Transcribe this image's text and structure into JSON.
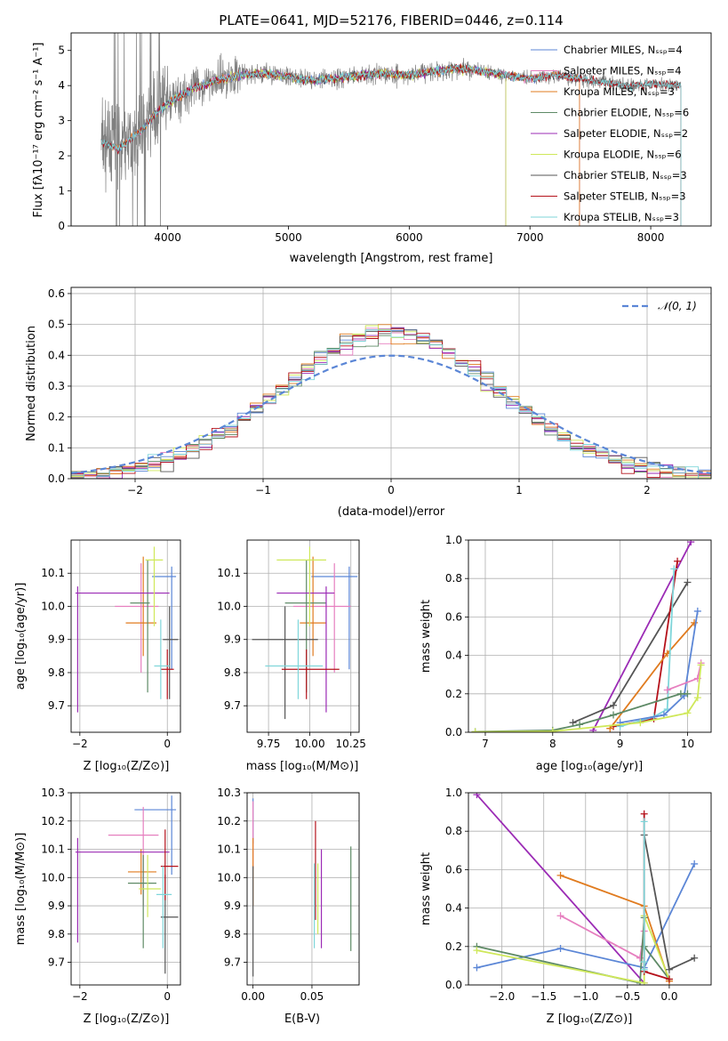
{
  "figure": {
    "title": "PLATE=0641, MJD=52176, FIBERID=0446, z=0.114"
  },
  "colors": {
    "chabrier_miles": "#5b86d6",
    "salpeter_miles": "#e67fbf",
    "kroupa_miles": "#e07b1f",
    "chabrier_elodie": "#5e8a66",
    "salpeter_elodie": "#9b2bb5",
    "kroupa_elodie": "#cfe85a",
    "chabrier_stelib": "#555555",
    "salpeter_stelib": "#b5121b",
    "kroupa_stelib": "#7fd6da",
    "data": "#808080",
    "normal": "#5b86d6"
  },
  "chart_data": [
    {
      "id": "spectrum",
      "type": "line",
      "xlabel": "wavelength [Angstrom, rest frame]",
      "ylabel": "Flux [fλ10⁻¹⁷ erg cm⁻² s⁻¹ A⁻¹]",
      "xlim": [
        3200,
        8500
      ],
      "ylim": [
        0,
        5.5
      ],
      "xticks": [
        "4000",
        "5000",
        "6000",
        "7000",
        "8000"
      ],
      "yticks": [
        "0",
        "1",
        "2",
        "3",
        "4",
        "5"
      ],
      "legend_position": "right",
      "continuum": [
        [
          3450,
          2.4
        ],
        [
          3600,
          2.2
        ],
        [
          3700,
          2.5
        ],
        [
          3800,
          2.8
        ],
        [
          3900,
          3.2
        ],
        [
          4000,
          3.5
        ],
        [
          4100,
          3.7
        ],
        [
          4200,
          3.9
        ],
        [
          4400,
          4.15
        ],
        [
          4600,
          4.3
        ],
        [
          4800,
          4.35
        ],
        [
          5000,
          4.25
        ],
        [
          5200,
          4.15
        ],
        [
          5400,
          4.2
        ],
        [
          5600,
          4.3
        ],
        [
          5800,
          4.35
        ],
        [
          6000,
          4.3
        ],
        [
          6200,
          4.4
        ],
        [
          6400,
          4.5
        ],
        [
          6600,
          4.4
        ],
        [
          6800,
          4.3
        ],
        [
          7000,
          4.2
        ],
        [
          7200,
          4.3
        ],
        [
          7400,
          4.2
        ],
        [
          7600,
          4.1
        ],
        [
          7800,
          4.0
        ],
        [
          8000,
          4.05
        ],
        [
          8250,
          4.0
        ]
      ],
      "series": [
        {
          "name": "Chabrier MILES, Nₛₛₚ=4",
          "color_key": "chabrier_miles"
        },
        {
          "name": "Salpeter MILES, Nₛₛₚ=4",
          "color_key": "salpeter_miles"
        },
        {
          "name": "Kroupa MILES, Nₛₛₚ=3",
          "color_key": "kroupa_miles"
        },
        {
          "name": "Chabrier ELODIE, Nₛₛₚ=6",
          "color_key": "chabrier_elodie"
        },
        {
          "name": "Salpeter ELODIE, Nₛₛₚ=2",
          "color_key": "salpeter_elodie"
        },
        {
          "name": "Kroupa ELODIE, Nₛₛₚ=6",
          "color_key": "kroupa_elodie"
        },
        {
          "name": "Chabrier STELIB, Nₛₛₚ=3",
          "color_key": "chabrier_stelib"
        },
        {
          "name": "Salpeter STELIB, Nₛₛₚ=3",
          "color_key": "salpeter_stelib"
        },
        {
          "name": "Kroupa STELIB, Nₛₛₚ=3",
          "color_key": "kroupa_stelib"
        }
      ]
    },
    {
      "id": "residuals",
      "type": "line",
      "xlabel": "(data-model)/error",
      "ylabel": "Normed distribution",
      "xlim": [
        -2.5,
        2.5
      ],
      "ylim": [
        0,
        0.62
      ],
      "xticks": [
        "−2",
        "−1",
        "0",
        "1",
        "2"
      ],
      "yticks": [
        "0.0",
        "0.1",
        "0.2",
        "0.3",
        "0.4",
        "0.5",
        "0.6"
      ],
      "legend_label": "𝒩(0, 1)",
      "legend_position": "top-right",
      "grid": true
    },
    {
      "id": "age-vs-Z",
      "type": "scatter",
      "xlabel": "Z [log₁₀(Z/Z⊙)]",
      "ylabel": "age  [log₁₀(age/yr)]",
      "xlim": [
        -2.2,
        0.3
      ],
      "ylim": [
        9.62,
        10.2
      ],
      "xticks": [
        "−2",
        "0"
      ],
      "yticks": [
        "9.7",
        "9.8",
        "9.9",
        "10.0",
        "10.1"
      ],
      "grid": true,
      "points": [
        {
          "key": "chabrier_miles",
          "x": 0.1,
          "y": 10.09,
          "xerr": [
            0.45,
            0.1
          ],
          "yerr": [
            0.28,
            0.03
          ]
        },
        {
          "key": "salpeter_miles",
          "x": -0.6,
          "y": 10.0,
          "xerr": [
            0.6,
            0.4
          ],
          "yerr": [
            0.2,
            0.13
          ]
        },
        {
          "key": "kroupa_miles",
          "x": -0.55,
          "y": 9.95,
          "xerr": [
            0.4,
            0.3
          ],
          "yerr": [
            0.1,
            0.2
          ]
        },
        {
          "key": "chabrier_elodie",
          "x": -0.45,
          "y": 10.01,
          "xerr": [
            0.4,
            0.05
          ],
          "yerr": [
            0.27,
            0.13
          ]
        },
        {
          "key": "salpeter_elodie",
          "x": -2.05,
          "y": 10.04,
          "xerr": [
            0.05,
            2.1
          ],
          "yerr": [
            0.36,
            0.02
          ]
        },
        {
          "key": "kroupa_elodie",
          "x": -0.3,
          "y": 10.14,
          "xerr": [
            0.2,
            0.2
          ],
          "yerr": [
            0.2,
            0.04
          ]
        },
        {
          "key": "chabrier_stelib",
          "x": 0.05,
          "y": 9.9,
          "xerr": [
            0.15,
            0.2
          ],
          "yerr": [
            0.18,
            0.1
          ]
        },
        {
          "key": "salpeter_stelib",
          "x": 0.0,
          "y": 9.81,
          "xerr": [
            0.15,
            0.15
          ],
          "yerr": [
            0.09,
            0.06
          ]
        },
        {
          "key": "kroupa_stelib",
          "x": -0.15,
          "y": 9.82,
          "xerr": [
            0.15,
            0.2
          ],
          "yerr": [
            0.1,
            0.14
          ]
        }
      ]
    },
    {
      "id": "age-vs-mass",
      "type": "scatter",
      "xlabel": "mass [log₁₀(M/M⊙)]",
      "xlim": [
        9.62,
        10.3
      ],
      "ylim": [
        9.62,
        10.2
      ],
      "xticks": [
        "9.75",
        "10.00",
        "10.25"
      ],
      "yticks": [
        "9.7",
        "9.8",
        "9.9",
        "10.0",
        "10.1"
      ],
      "grid": true,
      "points": [
        {
          "key": "chabrier_miles",
          "x": 10.24,
          "y": 10.09,
          "xerr": [
            0.23,
            0.05
          ],
          "yerr": [
            0.28,
            0.03
          ]
        },
        {
          "key": "salpeter_miles",
          "x": 10.15,
          "y": 10.0,
          "xerr": [
            0.25,
            0.1
          ],
          "yerr": [
            0.2,
            0.13
          ]
        },
        {
          "key": "kroupa_miles",
          "x": 10.02,
          "y": 9.95,
          "xerr": [
            0.08,
            0.08
          ],
          "yerr": [
            0.1,
            0.2
          ]
        },
        {
          "key": "chabrier_elodie",
          "x": 9.98,
          "y": 10.01,
          "xerr": [
            0.13,
            0.12
          ],
          "yerr": [
            0.27,
            0.13
          ]
        },
        {
          "key": "salpeter_elodie",
          "x": 10.1,
          "y": 10.04,
          "xerr": [
            0.3,
            0.05
          ],
          "yerr": [
            0.36,
            0.02
          ]
        },
        {
          "key": "kroupa_elodie",
          "x": 10.0,
          "y": 10.14,
          "xerr": [
            0.2,
            0.1
          ],
          "yerr": [
            0.2,
            0.04
          ]
        },
        {
          "key": "chabrier_stelib",
          "x": 9.85,
          "y": 9.9,
          "xerr": [
            0.2,
            0.2
          ],
          "yerr": [
            0.24,
            0.1
          ]
        },
        {
          "key": "salpeter_stelib",
          "x": 9.98,
          "y": 9.81,
          "xerr": [
            0.15,
            0.2
          ],
          "yerr": [
            0.09,
            0.06
          ]
        },
        {
          "key": "kroupa_stelib",
          "x": 9.93,
          "y": 9.82,
          "xerr": [
            0.2,
            0.15
          ],
          "yerr": [
            0.1,
            0.14
          ]
        }
      ]
    },
    {
      "id": "weight-vs-age",
      "type": "line",
      "xlabel": "age  [log₁₀(age/yr)]",
      "ylabel": "mass weight",
      "xlim": [
        6.75,
        10.35
      ],
      "ylim": [
        0,
        1.0
      ],
      "xticks": [
        "7",
        "8",
        "9",
        "10"
      ],
      "yticks": [
        "0.0",
        "0.2",
        "0.4",
        "0.6",
        "0.8",
        "1.0"
      ],
      "grid": true,
      "series": [
        {
          "key": "salpeter_elodie",
          "x": [
            8.6,
            10.05
          ],
          "y": [
            0.01,
            0.99
          ]
        },
        {
          "key": "chabrier_stelib",
          "x": [
            8.3,
            8.9,
            10.0
          ],
          "y": [
            0.05,
            0.14,
            0.78
          ]
        },
        {
          "key": "salpeter_stelib",
          "x": [
            8.9,
            9.5,
            9.85
          ],
          "y": [
            0.03,
            0.07,
            0.89
          ]
        },
        {
          "key": "kroupa_miles",
          "x": [
            8.85,
            9.7,
            10.1
          ],
          "y": [
            0.02,
            0.41,
            0.57
          ]
        },
        {
          "key": "kroupa_stelib",
          "x": [
            9.0,
            9.5,
            9.7,
            9.8
          ],
          "y": [
            0.03,
            0.08,
            0.12,
            0.85
          ]
        },
        {
          "key": "chabrier_miles",
          "x": [
            9.0,
            9.65,
            9.95,
            10.15
          ],
          "y": [
            0.05,
            0.09,
            0.19,
            0.63
          ]
        },
        {
          "key": "salpeter_miles",
          "x": [
            9.7,
            10.15,
            10.2
          ],
          "y": [
            0.22,
            0.28,
            0.36
          ]
        },
        {
          "key": "chabrier_elodie",
          "x": [
            6.85,
            8.0,
            8.4,
            8.9,
            9.9,
            10.0
          ],
          "y": [
            0.003,
            0.01,
            0.04,
            0.09,
            0.2,
            0.2
          ]
        },
        {
          "key": "kroupa_elodie",
          "x": [
            6.85,
            8.0,
            9.3,
            10.0,
            10.15,
            10.2
          ],
          "y": [
            0.002,
            0.005,
            0.05,
            0.1,
            0.18,
            0.35
          ]
        }
      ]
    },
    {
      "id": "mass-vs-Z",
      "type": "scatter",
      "xlabel": "Z [log₁₀(Z/Z⊙)]",
      "ylabel": "mass [log₁₀(M/M⊙)]",
      "xlim": [
        -2.2,
        0.3
      ],
      "ylim": [
        9.62,
        10.3
      ],
      "xticks": [
        "−2",
        "0"
      ],
      "yticks": [
        "9.7",
        "9.8",
        "9.9",
        "10.0",
        "10.1",
        "10.2",
        "10.3"
      ],
      "grid": true,
      "points": [
        {
          "key": "chabrier_miles",
          "x": 0.1,
          "y": 10.24,
          "xerr": [
            0.85,
            0.1
          ],
          "yerr": [
            0.23,
            0.05
          ]
        },
        {
          "key": "salpeter_miles",
          "x": -0.55,
          "y": 10.15,
          "xerr": [
            0.8,
            0.35
          ],
          "yerr": [
            0.25,
            0.1
          ]
        },
        {
          "key": "kroupa_miles",
          "x": -0.6,
          "y": 10.02,
          "xerr": [
            0.3,
            0.35
          ],
          "yerr": [
            0.08,
            0.08
          ]
        },
        {
          "key": "chabrier_elodie",
          "x": -0.55,
          "y": 9.98,
          "xerr": [
            0.35,
            0.3
          ],
          "yerr": [
            0.23,
            0.1
          ]
        },
        {
          "key": "salpeter_elodie",
          "x": -2.05,
          "y": 10.09,
          "xerr": [
            0.05,
            2.1
          ],
          "yerr": [
            0.32,
            0.05
          ]
        },
        {
          "key": "kroupa_elodie",
          "x": -0.45,
          "y": 9.96,
          "xerr": [
            0.2,
            0.3
          ],
          "yerr": [
            0.1,
            0.12
          ]
        },
        {
          "key": "chabrier_stelib",
          "x": -0.05,
          "y": 9.86,
          "xerr": [
            0.1,
            0.3
          ],
          "yerr": [
            0.2,
            0.15
          ]
        },
        {
          "key": "salpeter_stelib",
          "x": -0.05,
          "y": 10.04,
          "xerr": [
            0.1,
            0.3
          ],
          "yerr": [
            0.12,
            0.13
          ]
        },
        {
          "key": "kroupa_stelib",
          "x": -0.1,
          "y": 9.94,
          "xerr": [
            0.15,
            0.2
          ],
          "yerr": [
            0.19,
            0.1
          ]
        }
      ]
    },
    {
      "id": "mass-vs-EBV",
      "type": "scatter",
      "xlabel": "E(B-V)",
      "xlim": [
        -0.005,
        0.09
      ],
      "ylim": [
        9.62,
        10.3
      ],
      "xticks": [
        "0.00",
        "0.05"
      ],
      "yticks": [
        "9.7",
        "9.8",
        "9.9",
        "10.0",
        "10.1",
        "10.2",
        "10.3"
      ],
      "grid": true,
      "points": [
        {
          "key": "chabrier_miles",
          "x": 0.0,
          "y": 10.24,
          "yerr": [
            0.12,
            0.04
          ]
        },
        {
          "key": "salpeter_miles",
          "x": 0.0,
          "y": 10.15,
          "yerr": [
            0.12,
            0.12
          ]
        },
        {
          "key": "kroupa_miles",
          "x": 0.0,
          "y": 10.0,
          "yerr": [
            0.1,
            0.14
          ]
        },
        {
          "key": "chabrier_stelib",
          "x": 0.0,
          "y": 9.9,
          "yerr": [
            0.25,
            0.14
          ]
        },
        {
          "key": "salpeter_stelib",
          "x": 0.053,
          "y": 10.05,
          "yerr": [
            0.2,
            0.15
          ]
        },
        {
          "key": "kroupa_stelib",
          "x": 0.052,
          "y": 9.85,
          "yerr": [
            0.1,
            0.2
          ]
        },
        {
          "key": "kroupa_elodie",
          "x": 0.055,
          "y": 9.95,
          "yerr": [
            0.15,
            0.1
          ]
        },
        {
          "key": "salpeter_elodie",
          "x": 0.058,
          "y": 9.9,
          "yerr": [
            0.15,
            0.2
          ]
        },
        {
          "key": "chabrier_elodie",
          "x": 0.083,
          "y": 9.93,
          "yerr": [
            0.19,
            0.18
          ]
        }
      ]
    },
    {
      "id": "weight-vs-Z",
      "type": "line",
      "xlabel": "Z [log₁₀(Z/Z⊙)]",
      "ylabel": "mass weight",
      "xlim": [
        -2.4,
        0.5
      ],
      "ylim": [
        0,
        1.0
      ],
      "xticks": [
        "−2.0",
        "−1.5",
        "−1.0",
        "−0.5",
        "0.0"
      ],
      "yticks": [
        "0.0",
        "0.2",
        "0.4",
        "0.6",
        "0.8",
        "1.0"
      ],
      "grid": true,
      "series": [
        {
          "key": "salpeter_elodie",
          "x": [
            -2.3,
            -0.3
          ],
          "y": [
            0.99,
            0.01
          ]
        },
        {
          "key": "kroupa_miles",
          "x": [
            -1.3,
            -0.3,
            0.0
          ],
          "y": [
            0.57,
            0.41,
            0.02
          ]
        },
        {
          "key": "salpeter_miles",
          "x": [
            -1.3,
            -0.35,
            -0.3
          ],
          "y": [
            0.36,
            0.14,
            0.28
          ]
        },
        {
          "key": "chabrier_miles",
          "x": [
            -2.3,
            -1.3,
            -0.3,
            0.3
          ],
          "y": [
            0.09,
            0.19,
            0.09,
            0.63
          ]
        },
        {
          "key": "chabrier_elodie",
          "x": [
            -2.3,
            -0.35,
            -0.3,
            -0.3,
            0.0
          ],
          "y": [
            0.2,
            0.01,
            0.35,
            0.2,
            0.03
          ]
        },
        {
          "key": "kroupa_elodie",
          "x": [
            -2.3,
            -0.3,
            -0.3,
            0.0
          ],
          "y": [
            0.18,
            0.01,
            0.36,
            0.03
          ]
        },
        {
          "key": "chabrier_stelib",
          "x": [
            -0.3,
            0.0,
            0.3
          ],
          "y": [
            0.78,
            0.08,
            0.14
          ]
        },
        {
          "key": "salpeter_stelib",
          "x": [
            -0.3,
            -0.3,
            0.0
          ],
          "y": [
            0.89,
            0.07,
            0.03
          ]
        },
        {
          "key": "kroupa_stelib",
          "x": [
            -0.3,
            -0.3,
            -0.3
          ],
          "y": [
            0.85,
            0.12,
            0.08
          ]
        }
      ]
    }
  ]
}
